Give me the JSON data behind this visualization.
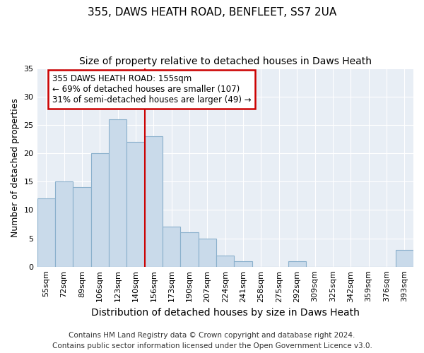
{
  "title": "355, DAWS HEATH ROAD, BENFLEET, SS7 2UA",
  "subtitle": "Size of property relative to detached houses in Daws Heath",
  "xlabel": "Distribution of detached houses by size in Daws Heath",
  "ylabel": "Number of detached properties",
  "bar_labels": [
    "55sqm",
    "72sqm",
    "89sqm",
    "106sqm",
    "123sqm",
    "140sqm",
    "156sqm",
    "173sqm",
    "190sqm",
    "207sqm",
    "224sqm",
    "241sqm",
    "258sqm",
    "275sqm",
    "292sqm",
    "309sqm",
    "325sqm",
    "342sqm",
    "359sqm",
    "376sqm",
    "393sqm"
  ],
  "bar_values": [
    12,
    15,
    14,
    20,
    26,
    22,
    23,
    7,
    6,
    5,
    2,
    1,
    0,
    0,
    1,
    0,
    0,
    0,
    0,
    0,
    3
  ],
  "bar_color": "#c9daea",
  "bar_edge_color": "#8ab0cc",
  "annotation_text": "355 DAWS HEATH ROAD: 155sqm\n← 69% of detached houses are smaller (107)\n31% of semi-detached houses are larger (49) →",
  "annotation_box_color": "#ffffff",
  "annotation_box_edge": "#cc0000",
  "vline_color": "#cc0000",
  "vline_x": 5.5,
  "ylim": [
    0,
    35
  ],
  "yticks": [
    0,
    5,
    10,
    15,
    20,
    25,
    30,
    35
  ],
  "footer_line1": "Contains HM Land Registry data © Crown copyright and database right 2024.",
  "footer_line2": "Contains public sector information licensed under the Open Government Licence v3.0.",
  "title_fontsize": 11,
  "subtitle_fontsize": 10,
  "xlabel_fontsize": 10,
  "ylabel_fontsize": 9,
  "tick_fontsize": 8,
  "annotation_fontsize": 8.5,
  "footer_fontsize": 7.5,
  "bg_color": "#e8eef5",
  "grid_color": "#ffffff"
}
